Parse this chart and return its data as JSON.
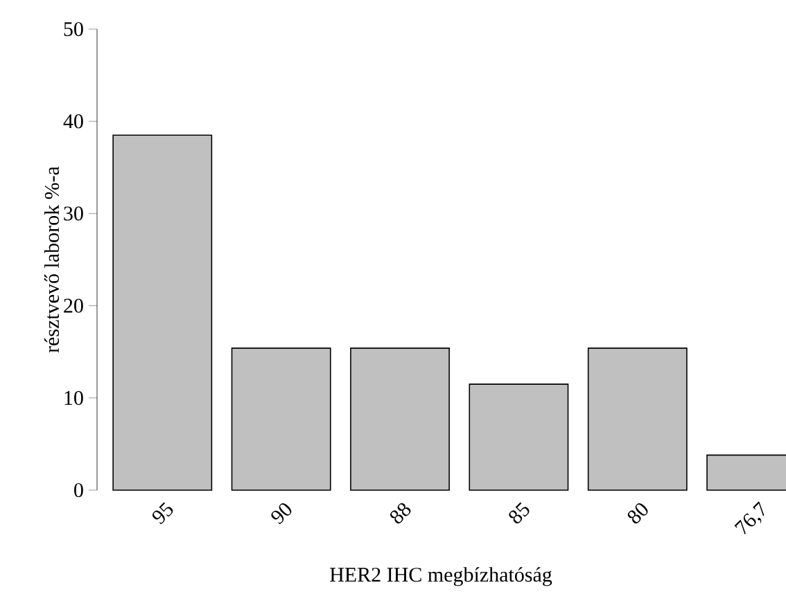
{
  "chart_data": {
    "type": "bar",
    "xlabel": "HER2 IHC megbízhatóság",
    "ylabel": "résztvevő laborok %-a",
    "categories": [
      "95",
      "90",
      "88",
      "85",
      "80",
      "76,7"
    ],
    "values": [
      38.5,
      15.4,
      15.4,
      11.5,
      15.4,
      3.8
    ],
    "color": "#c0c0c0",
    "ylim": [
      0,
      50
    ],
    "yticks": [
      0,
      10,
      20,
      30,
      40,
      50
    ],
    "grid": false
  }
}
